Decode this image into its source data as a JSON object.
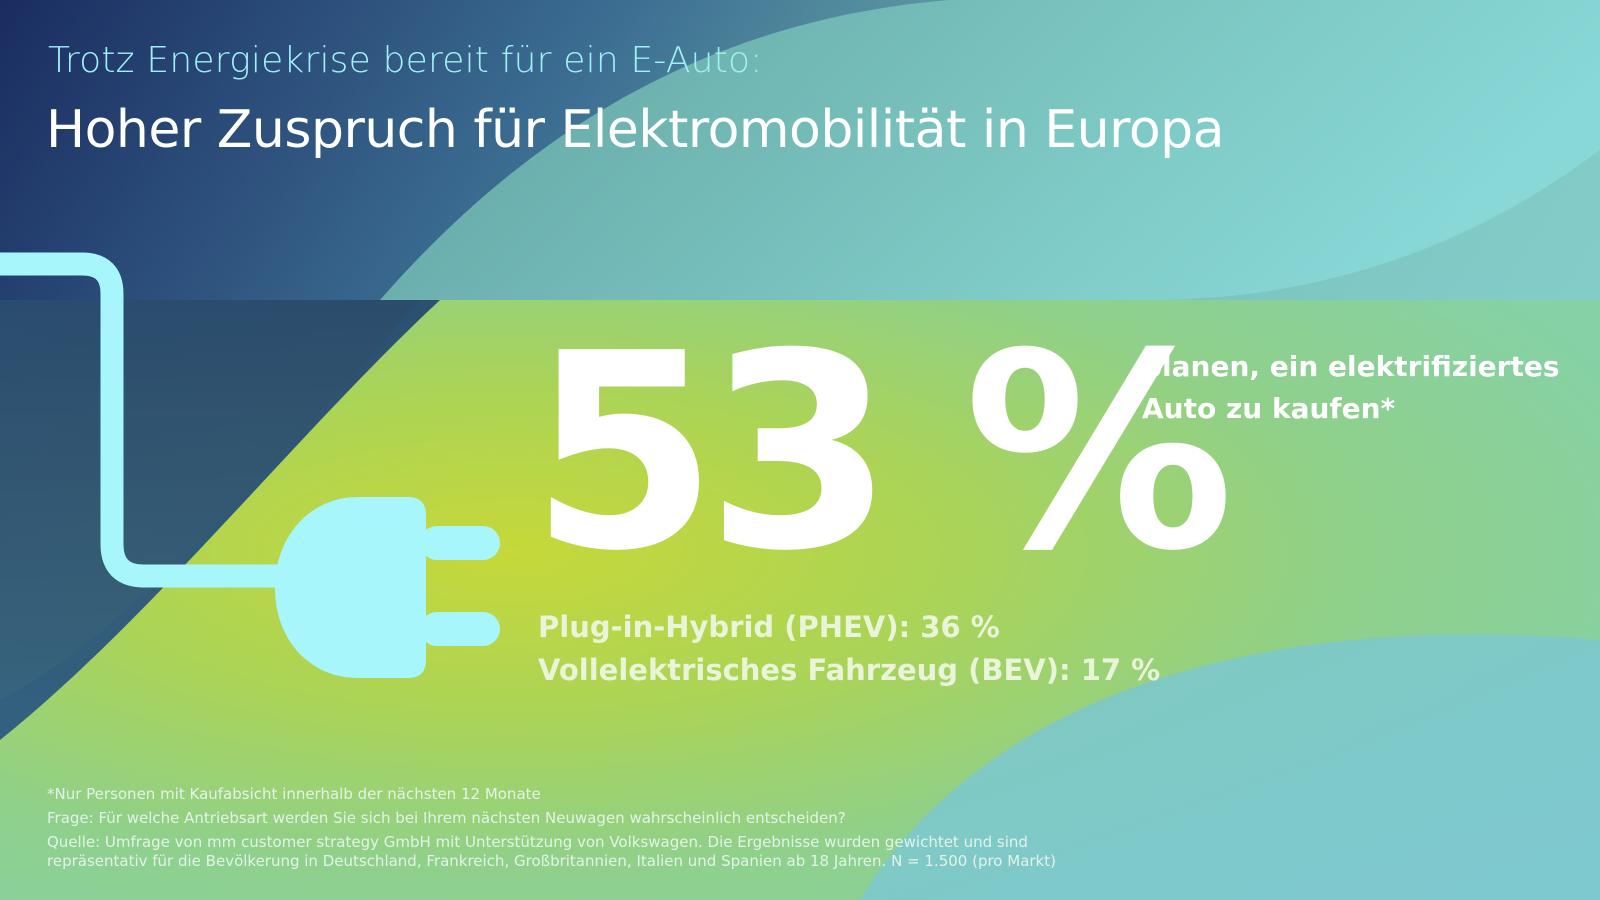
{
  "header": {
    "subtitle": "Trotz Energiekrise bereit für ein E-Auto:",
    "title": "Hoher Zuspruch für Elektromobilität in Europa"
  },
  "highlight": {
    "value": "53 %",
    "caption_line1": "planen, ein elektrifiziertes",
    "caption_line2": "Auto zu kaufen*"
  },
  "breakdown": [
    {
      "label": "Plug-in-Hybrid (PHEV): 36 %"
    },
    {
      "label": "Vollelektrisches Fahrzeug (BEV): 17 %"
    }
  ],
  "footnotes": {
    "note": "*Nur Personen mit Kaufabsicht innerhalb der nächsten 12 Monate",
    "question": "Frage: Für welche Antriebsart werden Sie sich bei Ihrem nächsten Neuwagen wahrscheinlich entscheiden?",
    "source_line1": "Quelle: Umfrage von mm customer strategy GmbH mit Unterstützung von Volkswagen. Die Ergebnisse wurden gewichtet und sind",
    "source_line2": "repräsentativ für die Bevölkerung in Deutschland, Frankreich, Großbritannien, Italien und Spanien ab 18 Jahren. N = 1.500 (pro Markt)"
  },
  "colors": {
    "dark_blue": "#1b2f63",
    "teal": "#86d6d4",
    "lime": "#c3d83c",
    "plug": "#a6f6fb",
    "subtitle": "#9ff1f7"
  },
  "icons": {
    "plug": "plug-icon"
  }
}
